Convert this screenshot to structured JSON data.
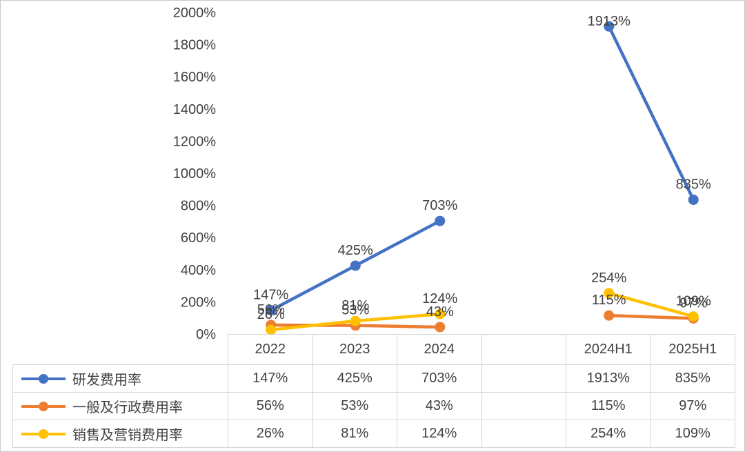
{
  "frame": {
    "background": "#ffffff",
    "outer_border_color": "#c9c9c9"
  },
  "chart_data": {
    "type": "line",
    "title": "",
    "categories": [
      "2022",
      "2023",
      "2024",
      "",
      "2024H1",
      "2025H1"
    ],
    "series": [
      {
        "name": "研发费用率",
        "color": "#4472c4",
        "values": [
          147,
          425,
          703,
          null,
          1913,
          835
        ]
      },
      {
        "name": "一般及行政费用率",
        "color": "#ed7d31",
        "values": [
          56,
          53,
          43,
          null,
          115,
          97
        ]
      },
      {
        "name": "销售及营销费用率",
        "color": "#ffc000",
        "values": [
          26,
          81,
          124,
          null,
          254,
          109
        ]
      }
    ],
    "y_axis": {
      "min": 0,
      "max": 2000,
      "step": 200,
      "tick_labels": [
        "0%",
        "200%",
        "400%",
        "600%",
        "800%",
        "1000%",
        "1200%",
        "1400%",
        "1600%",
        "1800%",
        "2000%"
      ]
    },
    "value_suffix": "%",
    "data_labels": true,
    "grid": false,
    "legend_position": "data-table-left",
    "text_color": "#404040",
    "table_border_color": "#d5d5d5"
  }
}
